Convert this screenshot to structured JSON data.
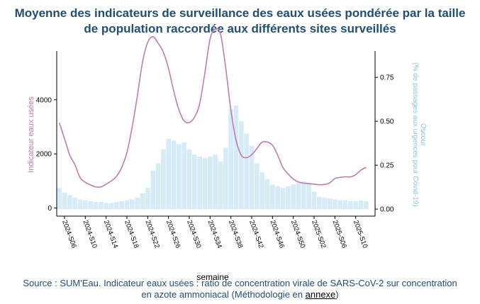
{
  "title": {
    "line1": "Moyenne des indicateurs de surveillance des eaux usées pondérée par la taille",
    "line2": "de population raccordée aux différents sites surveillés"
  },
  "source": {
    "text": "Source : SUM'Eau. Indicateur eaux usées : ratio de concentration virale de SARS-CoV-2 sur concentration",
    "text2": "en azote ammoniacal (Méthodologie en ",
    "link": "annexe",
    "text_end": ")"
  },
  "colors": {
    "line": "#c47aaa",
    "bar": "#d6ebf8",
    "left_label": "#c47aaa",
    "right_label": "#8cc5e3",
    "title": "#1f4e79"
  },
  "chart_data": {
    "type": "bar+line",
    "xlabel": "semaine",
    "ylabel_left": "Indicateur eaux usées",
    "ylabel_right_line1": "Oscour",
    "ylabel_right_line2": "(% de passages aux urgences pour Covid-19)",
    "ylim_left": [
      -300,
      5800
    ],
    "yticks_left": [
      0,
      2000,
      4000
    ],
    "ylim_right": [
      -0.04,
      0.9
    ],
    "yticks_right": [
      "0.00",
      "0.25",
      "0.50",
      "0.75"
    ],
    "ytick_right_values": [
      0,
      0.25,
      0.5,
      0.75
    ],
    "categories": [
      "2024-S05",
      "2024-S06",
      "2024-S07",
      "2024-S08",
      "2024-S09",
      "2024-S10",
      "2024-S11",
      "2024-S12",
      "2024-S13",
      "2024-S14",
      "2024-S15",
      "2024-S16",
      "2024-S17",
      "2024-S18",
      "2024-S19",
      "2024-S20",
      "2024-S21",
      "2024-S22",
      "2024-S23",
      "2024-S24",
      "2024-S25",
      "2024-S26",
      "2024-S27",
      "2024-S28",
      "2024-S29",
      "2024-S30",
      "2024-S31",
      "2024-S32",
      "2024-S33",
      "2024-S34",
      "2024-S35",
      "2024-S36",
      "2024-S37",
      "2024-S38",
      "2024-S39",
      "2024-S40",
      "2024-S41",
      "2024-S42",
      "2024-S43",
      "2024-S44",
      "2024-S45",
      "2024-S46",
      "2024-S47",
      "2024-S48",
      "2024-S49",
      "2024-S50",
      "2024-S51",
      "2024-S52",
      "2025-S01",
      "2025-S02",
      "2025-S03",
      "2025-S04",
      "2025-S05",
      "2025-S06",
      "2025-S07",
      "2025-S08",
      "2025-S09",
      "2025-S10",
      "2025-S11",
      "2025-S12"
    ],
    "xtick_labels": [
      "2024-S06",
      "2024-S10",
      "2024-S14",
      "2024-S18",
      "2024-S22",
      "2024-S26",
      "2024-S30",
      "2024-S34",
      "2024-S38",
      "2024-S42",
      "2024-S46",
      "2024-S50",
      "2025-S02",
      "2025-S06",
      "2025-S10"
    ],
    "series": [
      {
        "name": "Oscour",
        "type": "bar",
        "axis": "right",
        "values": [
          0.12,
          0.095,
          0.08,
          0.065,
          0.055,
          0.05,
          0.045,
          0.04,
          0.04,
          0.035,
          0.035,
          0.04,
          0.045,
          0.05,
          0.055,
          0.065,
          0.09,
          0.12,
          0.22,
          0.26,
          0.34,
          0.4,
          0.39,
          0.37,
          0.38,
          0.34,
          0.31,
          0.3,
          0.29,
          0.3,
          0.31,
          0.27,
          0.35,
          0.57,
          0.59,
          0.5,
          0.43,
          0.36,
          0.26,
          0.21,
          0.17,
          0.14,
          0.13,
          0.12,
          0.13,
          0.14,
          0.15,
          0.16,
          0.15,
          0.1,
          0.07,
          0.065,
          0.06,
          0.055,
          0.05,
          0.05,
          0.045,
          0.045,
          0.05,
          0.045
        ]
      },
      {
        "name": "Indicateur eaux usées",
        "type": "line",
        "axis": "left",
        "values": [
          3150,
          2560,
          1960,
          1600,
          1120,
          950,
          850,
          780,
          780,
          880,
          1000,
          1170,
          1500,
          2050,
          2980,
          4130,
          5390,
          6120,
          6330,
          6090,
          5760,
          5160,
          4320,
          3630,
          3220,
          3160,
          3360,
          3860,
          5000,
          6250,
          6610,
          6430,
          5180,
          3610,
          2500,
          1950,
          1860,
          1970,
          2200,
          2430,
          2440,
          2320,
          1950,
          1500,
          1260,
          1070,
          960,
          920,
          900,
          880,
          860,
          870,
          930,
          1090,
          1130,
          1150,
          1150,
          1230,
          1400,
          1500
        ]
      }
    ]
  }
}
